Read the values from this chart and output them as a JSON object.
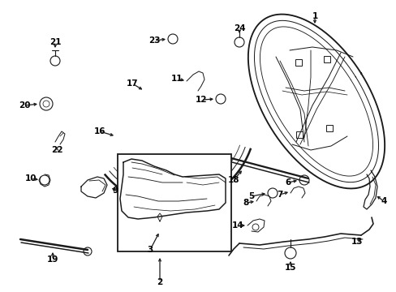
{
  "background_color": "#ffffff",
  "fig_width": 4.89,
  "fig_height": 3.6,
  "dpi": 100,
  "line_color": "#1a1a1a",
  "text_color": "#000000",
  "font_size": 7.5
}
